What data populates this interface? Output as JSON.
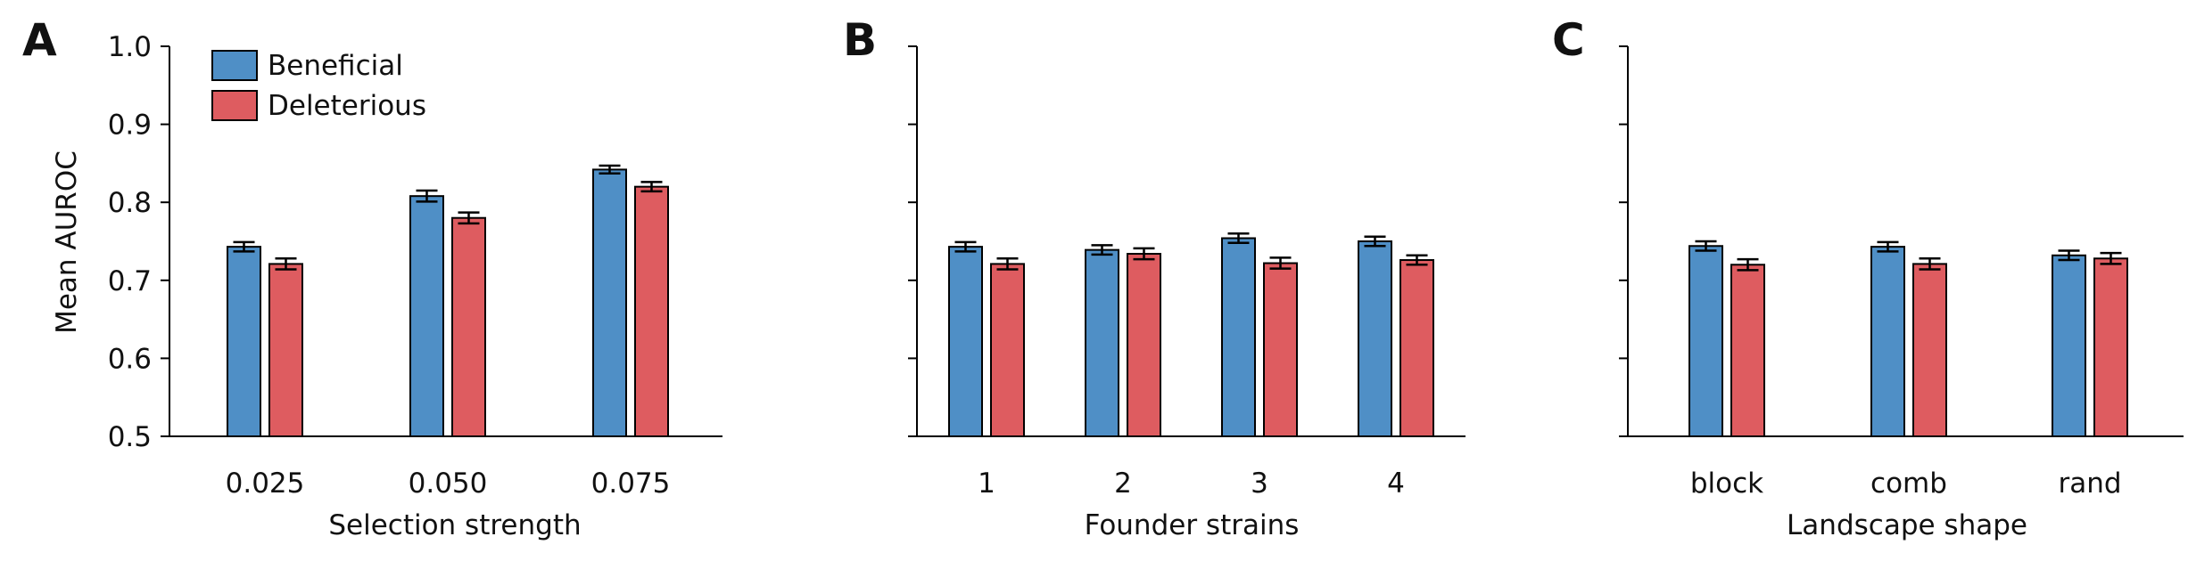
{
  "colors": {
    "beneficial": "#4f8fc6",
    "deleterious": "#de5c60",
    "axis": "#000000"
  },
  "legend": [
    {
      "name": "Beneficial",
      "color": "#4f8fc6"
    },
    {
      "name": "Deleterious",
      "color": "#de5c60"
    }
  ],
  "chart_data": [
    {
      "type": "bar",
      "panel": "A",
      "categories": [
        "0.025",
        "0.050",
        "0.075"
      ],
      "series": [
        {
          "name": "Beneficial",
          "values": [
            0.743,
            0.808,
            0.842
          ],
          "errors": [
            0.006,
            0.007,
            0.005
          ]
        },
        {
          "name": "Deleterious",
          "values": [
            0.721,
            0.78,
            0.82
          ],
          "errors": [
            0.007,
            0.007,
            0.006
          ]
        }
      ],
      "xlabel": "Selection strength",
      "ylabel": "Mean AUROC",
      "ylim": [
        0.5,
        1.0
      ],
      "yticks": [
        "0.5",
        "0.6",
        "0.7",
        "0.8",
        "0.9",
        "1.0"
      ],
      "legend_position": "top-left"
    },
    {
      "type": "bar",
      "panel": "B",
      "categories": [
        "1",
        "2",
        "3",
        "4"
      ],
      "series": [
        {
          "name": "Beneficial",
          "values": [
            0.743,
            0.739,
            0.754,
            0.75
          ],
          "errors": [
            0.006,
            0.006,
            0.006,
            0.006
          ]
        },
        {
          "name": "Deleterious",
          "values": [
            0.721,
            0.734,
            0.722,
            0.726
          ],
          "errors": [
            0.007,
            0.007,
            0.007,
            0.006
          ]
        }
      ],
      "xlabel": "Founder strains",
      "ylabel": "",
      "ylim": [
        0.5,
        1.0
      ],
      "yticks": [
        "",
        "",
        "",
        "",
        "",
        ""
      ]
    },
    {
      "type": "bar",
      "panel": "C",
      "categories": [
        "block",
        "comb",
        "rand"
      ],
      "series": [
        {
          "name": "Beneficial",
          "values": [
            0.744,
            0.743,
            0.732
          ],
          "errors": [
            0.006,
            0.006,
            0.006
          ]
        },
        {
          "name": "Deleterious",
          "values": [
            0.72,
            0.721,
            0.728
          ],
          "errors": [
            0.007,
            0.007,
            0.007
          ]
        }
      ],
      "xlabel": "Landscape shape",
      "ylabel": "",
      "ylim": [
        0.5,
        1.0
      ],
      "yticks": [
        "",
        "",
        "",
        "",
        "",
        ""
      ]
    }
  ]
}
